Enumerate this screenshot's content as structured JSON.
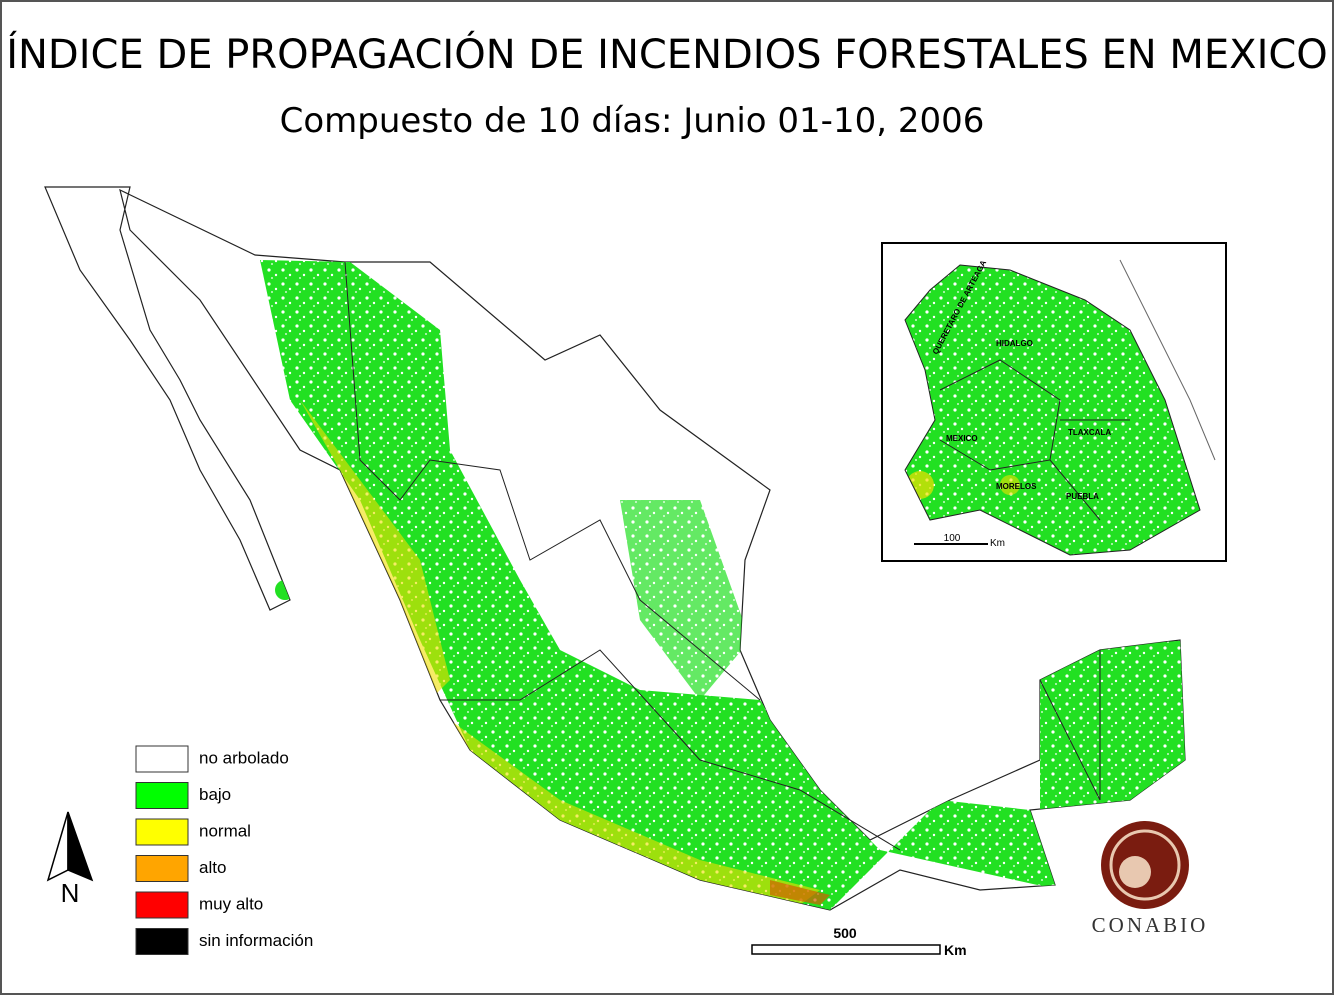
{
  "title": "ÍNDICE DE PROPAGACIÓN DE INCENDIOS FORESTALES EN MEXICO",
  "subtitle": "Compuesto de 10 días: Junio 01-10, 2006",
  "legend": [
    {
      "label": "no arbolado",
      "color": "#ffffff"
    },
    {
      "label": "bajo",
      "color": "#00ff00"
    },
    {
      "label": "normal",
      "color": "#ffff00"
    },
    {
      "label": "alto",
      "color": "#ffa500"
    },
    {
      "label": "muy alto",
      "color": "#ff0000"
    },
    {
      "label": "sin información",
      "color": "#000000"
    }
  ],
  "inset": {
    "labels": [
      "QUERETARO DE ARTEAGA",
      "HIDALGO",
      "MEXICO",
      "TLAXCALA",
      "MORELOS",
      "PUEBLA"
    ],
    "scale": {
      "label": "100",
      "unit": "Km"
    }
  },
  "scale": {
    "label": "500",
    "unit": "Km"
  },
  "north": "N",
  "logo": "CONABIO"
}
